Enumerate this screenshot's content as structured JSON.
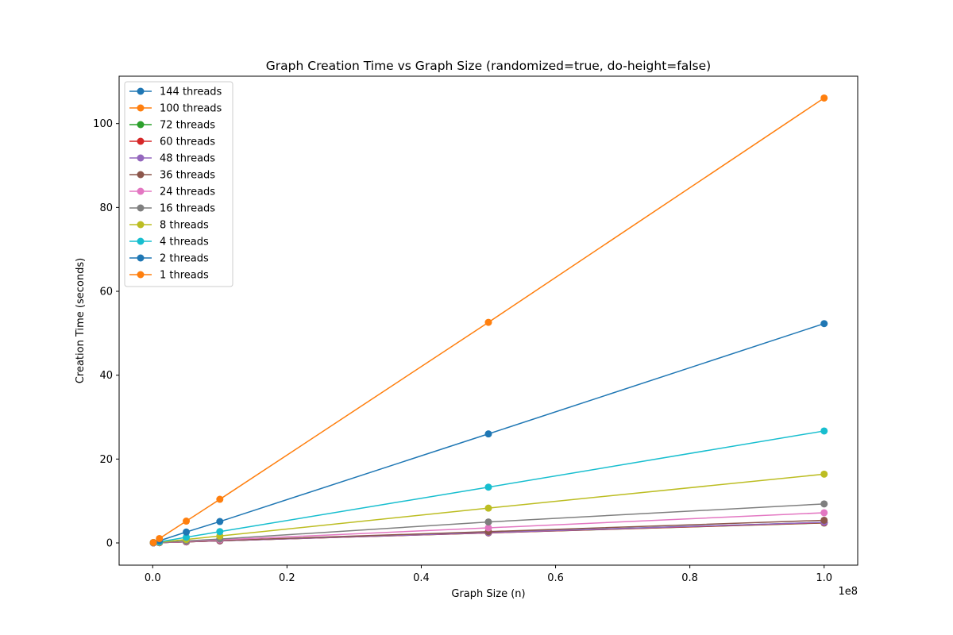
{
  "chart_data": {
    "type": "line",
    "title": "Graph Creation Time vs Graph Size (randomized=true, do-height=false)",
    "xlabel": "Graph Size (n)",
    "ylabel": "Creation Time (seconds)",
    "x_offset_label": "1e8",
    "xlim": [
      -5000000,
      105000000
    ],
    "ylim": [
      -5.3,
      111.3
    ],
    "x_scale": 100000000,
    "x_ticks": [
      0,
      20000000,
      40000000,
      60000000,
      80000000,
      100000000
    ],
    "x_tick_labels": [
      "0.0",
      "0.2",
      "0.4",
      "0.6",
      "0.8",
      "1.0"
    ],
    "y_ticks": [
      0,
      20,
      40,
      60,
      80,
      100
    ],
    "y_tick_labels": [
      "0",
      "20",
      "40",
      "60",
      "80",
      "100"
    ],
    "grid": false,
    "legend_position": "top-left",
    "x": [
      100000,
      1000000,
      5000000,
      10000000,
      50000000,
      100000000
    ],
    "series": [
      {
        "name": "144 threads",
        "color": "#1f77b4",
        "values": [
          0.02,
          0.06,
          0.27,
          0.52,
          2.5,
          4.9
        ]
      },
      {
        "name": "100 threads",
        "color": "#ff7f0e",
        "values": [
          0.02,
          0.06,
          0.26,
          0.51,
          2.45,
          4.8
        ]
      },
      {
        "name": "72 threads",
        "color": "#2ca02c",
        "values": [
          0.02,
          0.06,
          0.26,
          0.5,
          2.4,
          4.75
        ]
      },
      {
        "name": "60 threads",
        "color": "#d62728",
        "values": [
          0.02,
          0.06,
          0.26,
          0.5,
          2.4,
          4.8
        ]
      },
      {
        "name": "48 threads",
        "color": "#9467bd",
        "values": [
          0.02,
          0.06,
          0.26,
          0.5,
          2.45,
          4.9
        ]
      },
      {
        "name": "36 threads",
        "color": "#8c564b",
        "values": [
          0.03,
          0.07,
          0.28,
          0.56,
          2.7,
          5.4
        ]
      },
      {
        "name": "24 threads",
        "color": "#e377c2",
        "values": [
          0.04,
          0.08,
          0.36,
          0.73,
          3.6,
          7.2
        ]
      },
      {
        "name": "16 threads",
        "color": "#7f7f7f",
        "values": [
          0.05,
          0.1,
          0.47,
          0.93,
          5.0,
          9.3
        ]
      },
      {
        "name": "8 threads",
        "color": "#bcbd22",
        "values": [
          0.08,
          0.17,
          0.83,
          1.65,
          8.3,
          16.4
        ]
      },
      {
        "name": "4 threads",
        "color": "#17becf",
        "values": [
          0.1,
          0.27,
          1.35,
          2.7,
          13.3,
          26.7
        ]
      },
      {
        "name": "2 threads",
        "color": "#1f77b4",
        "values": [
          0.1,
          0.52,
          2.6,
          5.1,
          26.0,
          52.3
        ]
      },
      {
        "name": "1 threads",
        "color": "#ff7f0e",
        "values": [
          0.1,
          1.05,
          5.2,
          10.4,
          52.6,
          106.1
        ]
      }
    ]
  }
}
